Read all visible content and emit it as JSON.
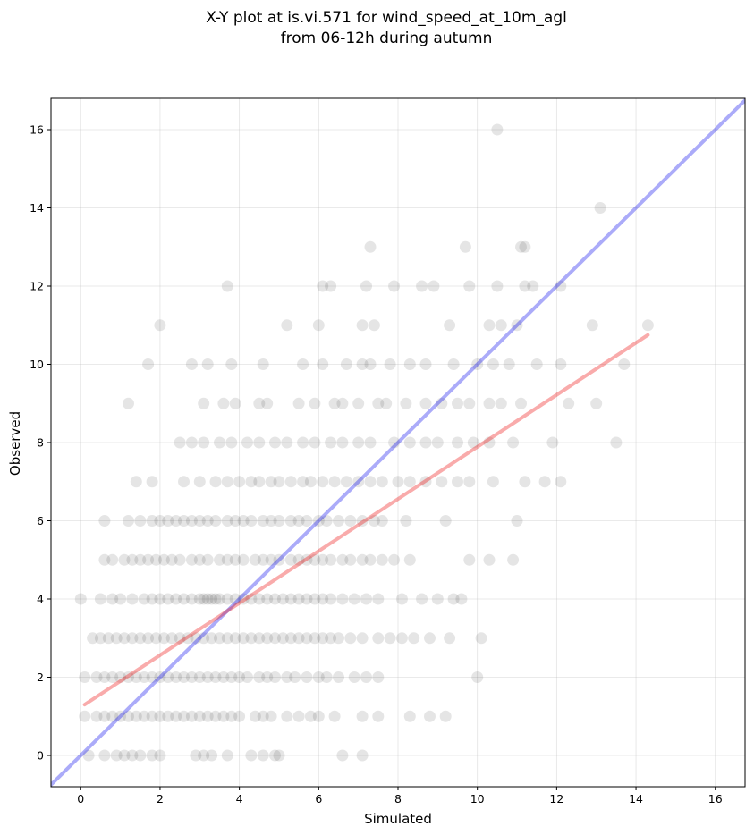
{
  "chart_data": {
    "type": "scatter",
    "title_line1": "X-Y plot at is.vi.571 for wind_speed_at_10m_agl",
    "title_line2": "from 06-12h during autumn",
    "xlabel": "Simulated",
    "ylabel": "Observed",
    "xlim": [
      -0.75,
      16.75
    ],
    "ylim": [
      -0.8,
      16.8
    ],
    "xticks": [
      0,
      2,
      4,
      6,
      8,
      10,
      12,
      14,
      16
    ],
    "yticks": [
      0,
      2,
      4,
      6,
      8,
      10,
      12,
      14,
      16
    ],
    "grid": true,
    "colors": {
      "points": "#000000",
      "identity_line": "#0000ee",
      "fit_line": "#ee0000"
    },
    "reference_lines": [
      {
        "name": "1:1",
        "x": [
          -0.75,
          16.75
        ],
        "y": [
          -0.75,
          16.75
        ]
      },
      {
        "name": "fit",
        "x": [
          0.1,
          14.3
        ],
        "y": [
          1.3,
          10.75
        ]
      }
    ],
    "points": [
      [
        0.0,
        4
      ],
      [
        0.5,
        4
      ],
      [
        0.8,
        4
      ],
      [
        1.0,
        4
      ],
      [
        1.3,
        4
      ],
      [
        1.6,
        4
      ],
      [
        1.8,
        4
      ],
      [
        2.0,
        4
      ],
      [
        2.2,
        4
      ],
      [
        2.4,
        4
      ],
      [
        2.6,
        4
      ],
      [
        2.8,
        4
      ],
      [
        3.0,
        4
      ],
      [
        3.1,
        4
      ],
      [
        3.2,
        4
      ],
      [
        3.3,
        4
      ],
      [
        3.4,
        4
      ],
      [
        3.5,
        4
      ],
      [
        3.7,
        4
      ],
      [
        3.9,
        4
      ],
      [
        4.1,
        4
      ],
      [
        4.3,
        4
      ],
      [
        4.5,
        4
      ],
      [
        4.7,
        4
      ],
      [
        4.9,
        4
      ],
      [
        5.1,
        4
      ],
      [
        5.3,
        4
      ],
      [
        5.5,
        4
      ],
      [
        5.7,
        4
      ],
      [
        5.9,
        4
      ],
      [
        6.1,
        4
      ],
      [
        6.3,
        4
      ],
      [
        6.6,
        4
      ],
      [
        6.9,
        4
      ],
      [
        7.2,
        4
      ],
      [
        7.5,
        4
      ],
      [
        8.1,
        4
      ],
      [
        8.6,
        4
      ],
      [
        9.0,
        4
      ],
      [
        9.4,
        4
      ],
      [
        9.6,
        4
      ],
      [
        0.3,
        3
      ],
      [
        0.5,
        3
      ],
      [
        0.7,
        3
      ],
      [
        0.9,
        3
      ],
      [
        1.1,
        3
      ],
      [
        1.3,
        3
      ],
      [
        1.5,
        3
      ],
      [
        1.7,
        3
      ],
      [
        1.9,
        3
      ],
      [
        2.1,
        3
      ],
      [
        2.3,
        3
      ],
      [
        2.5,
        3
      ],
      [
        2.7,
        3
      ],
      [
        2.9,
        3
      ],
      [
        3.1,
        3
      ],
      [
        3.3,
        3
      ],
      [
        3.5,
        3
      ],
      [
        3.7,
        3
      ],
      [
        3.9,
        3
      ],
      [
        4.1,
        3
      ],
      [
        4.3,
        3
      ],
      [
        4.5,
        3
      ],
      [
        4.7,
        3
      ],
      [
        4.9,
        3
      ],
      [
        5.1,
        3
      ],
      [
        5.3,
        3
      ],
      [
        5.5,
        3
      ],
      [
        5.7,
        3
      ],
      [
        5.9,
        3
      ],
      [
        6.1,
        3
      ],
      [
        6.3,
        3
      ],
      [
        6.5,
        3
      ],
      [
        6.8,
        3
      ],
      [
        7.1,
        3
      ],
      [
        7.5,
        3
      ],
      [
        7.8,
        3
      ],
      [
        8.1,
        3
      ],
      [
        8.4,
        3
      ],
      [
        8.8,
        3
      ],
      [
        9.3,
        3
      ],
      [
        10.1,
        3
      ],
      [
        0.1,
        2
      ],
      [
        0.4,
        2
      ],
      [
        0.6,
        2
      ],
      [
        0.8,
        2
      ],
      [
        1.0,
        2
      ],
      [
        1.2,
        2
      ],
      [
        1.4,
        2
      ],
      [
        1.6,
        2
      ],
      [
        1.8,
        2
      ],
      [
        2.0,
        2
      ],
      [
        2.2,
        2
      ],
      [
        2.4,
        2
      ],
      [
        2.6,
        2
      ],
      [
        2.8,
        2
      ],
      [
        3.0,
        2
      ],
      [
        3.2,
        2
      ],
      [
        3.4,
        2
      ],
      [
        3.6,
        2
      ],
      [
        3.8,
        2
      ],
      [
        4.0,
        2
      ],
      [
        4.2,
        2
      ],
      [
        4.5,
        2
      ],
      [
        4.7,
        2
      ],
      [
        4.9,
        2
      ],
      [
        5.2,
        2
      ],
      [
        5.4,
        2
      ],
      [
        5.7,
        2
      ],
      [
        6.0,
        2
      ],
      [
        6.2,
        2
      ],
      [
        6.5,
        2
      ],
      [
        6.9,
        2
      ],
      [
        7.2,
        2
      ],
      [
        7.5,
        2
      ],
      [
        10.0,
        2
      ],
      [
        0.1,
        1
      ],
      [
        0.4,
        1
      ],
      [
        0.6,
        1
      ],
      [
        0.8,
        1
      ],
      [
        1.0,
        1
      ],
      [
        1.2,
        1
      ],
      [
        1.4,
        1
      ],
      [
        1.6,
        1
      ],
      [
        1.8,
        1
      ],
      [
        2.0,
        1
      ],
      [
        2.2,
        1
      ],
      [
        2.4,
        1
      ],
      [
        2.6,
        1
      ],
      [
        2.8,
        1
      ],
      [
        3.0,
        1
      ],
      [
        3.2,
        1
      ],
      [
        3.4,
        1
      ],
      [
        3.6,
        1
      ],
      [
        3.8,
        1
      ],
      [
        4.0,
        1
      ],
      [
        4.4,
        1
      ],
      [
        4.6,
        1
      ],
      [
        4.8,
        1
      ],
      [
        5.2,
        1
      ],
      [
        5.5,
        1
      ],
      [
        5.8,
        1
      ],
      [
        6.0,
        1
      ],
      [
        6.4,
        1
      ],
      [
        7.1,
        1
      ],
      [
        7.5,
        1
      ],
      [
        8.3,
        1
      ],
      [
        8.8,
        1
      ],
      [
        9.2,
        1
      ],
      [
        0.2,
        0
      ],
      [
        0.6,
        0
      ],
      [
        0.9,
        0
      ],
      [
        1.1,
        0
      ],
      [
        1.3,
        0
      ],
      [
        1.5,
        0
      ],
      [
        1.8,
        0
      ],
      [
        2.0,
        0
      ],
      [
        2.9,
        0
      ],
      [
        3.1,
        0
      ],
      [
        3.3,
        0
      ],
      [
        3.7,
        0
      ],
      [
        4.3,
        0
      ],
      [
        4.6,
        0
      ],
      [
        4.9,
        0
      ],
      [
        5.0,
        0
      ],
      [
        6.6,
        0
      ],
      [
        7.1,
        0
      ],
      [
        0.6,
        5
      ],
      [
        0.8,
        5
      ],
      [
        1.1,
        5
      ],
      [
        1.3,
        5
      ],
      [
        1.5,
        5
      ],
      [
        1.7,
        5
      ],
      [
        1.9,
        5
      ],
      [
        2.1,
        5
      ],
      [
        2.3,
        5
      ],
      [
        2.5,
        5
      ],
      [
        2.8,
        5
      ],
      [
        3.0,
        5
      ],
      [
        3.2,
        5
      ],
      [
        3.5,
        5
      ],
      [
        3.7,
        5
      ],
      [
        3.9,
        5
      ],
      [
        4.1,
        5
      ],
      [
        4.4,
        5
      ],
      [
        4.6,
        5
      ],
      [
        4.8,
        5
      ],
      [
        5.0,
        5
      ],
      [
        5.3,
        5
      ],
      [
        5.5,
        5
      ],
      [
        5.7,
        5
      ],
      [
        5.9,
        5
      ],
      [
        6.1,
        5
      ],
      [
        6.3,
        5
      ],
      [
        6.6,
        5
      ],
      [
        6.8,
        5
      ],
      [
        7.1,
        5
      ],
      [
        7.3,
        5
      ],
      [
        7.6,
        5
      ],
      [
        7.9,
        5
      ],
      [
        8.3,
        5
      ],
      [
        9.8,
        5
      ],
      [
        10.3,
        5
      ],
      [
        10.9,
        5
      ],
      [
        0.6,
        6
      ],
      [
        1.2,
        6
      ],
      [
        1.5,
        6
      ],
      [
        1.8,
        6
      ],
      [
        2.0,
        6
      ],
      [
        2.2,
        6
      ],
      [
        2.4,
        6
      ],
      [
        2.6,
        6
      ],
      [
        2.8,
        6
      ],
      [
        3.0,
        6
      ],
      [
        3.2,
        6
      ],
      [
        3.4,
        6
      ],
      [
        3.7,
        6
      ],
      [
        3.9,
        6
      ],
      [
        4.1,
        6
      ],
      [
        4.3,
        6
      ],
      [
        4.6,
        6
      ],
      [
        4.8,
        6
      ],
      [
        5.0,
        6
      ],
      [
        5.3,
        6
      ],
      [
        5.5,
        6
      ],
      [
        5.7,
        6
      ],
      [
        6.0,
        6
      ],
      [
        6.2,
        6
      ],
      [
        6.5,
        6
      ],
      [
        6.8,
        6
      ],
      [
        7.1,
        6
      ],
      [
        7.4,
        6
      ],
      [
        7.6,
        6
      ],
      [
        8.2,
        6
      ],
      [
        9.2,
        6
      ],
      [
        11.0,
        6
      ],
      [
        1.4,
        7
      ],
      [
        1.8,
        7
      ],
      [
        2.6,
        7
      ],
      [
        3.0,
        7
      ],
      [
        3.4,
        7
      ],
      [
        3.7,
        7
      ],
      [
        4.0,
        7
      ],
      [
        4.3,
        7
      ],
      [
        4.5,
        7
      ],
      [
        4.8,
        7
      ],
      [
        5.0,
        7
      ],
      [
        5.3,
        7
      ],
      [
        5.6,
        7
      ],
      [
        5.8,
        7
      ],
      [
        6.1,
        7
      ],
      [
        6.4,
        7
      ],
      [
        6.7,
        7
      ],
      [
        7.0,
        7
      ],
      [
        7.3,
        7
      ],
      [
        7.6,
        7
      ],
      [
        8.0,
        7
      ],
      [
        8.3,
        7
      ],
      [
        8.7,
        7
      ],
      [
        9.1,
        7
      ],
      [
        9.5,
        7
      ],
      [
        9.8,
        7
      ],
      [
        10.4,
        7
      ],
      [
        11.2,
        7
      ],
      [
        11.7,
        7
      ],
      [
        12.1,
        7
      ],
      [
        2.5,
        8
      ],
      [
        2.8,
        8
      ],
      [
        3.1,
        8
      ],
      [
        3.5,
        8
      ],
      [
        3.8,
        8
      ],
      [
        4.2,
        8
      ],
      [
        4.5,
        8
      ],
      [
        4.9,
        8
      ],
      [
        5.2,
        8
      ],
      [
        5.6,
        8
      ],
      [
        5.9,
        8
      ],
      [
        6.3,
        8
      ],
      [
        6.6,
        8
      ],
      [
        7.0,
        8
      ],
      [
        7.3,
        8
      ],
      [
        7.9,
        8
      ],
      [
        8.3,
        8
      ],
      [
        8.7,
        8
      ],
      [
        9.0,
        8
      ],
      [
        9.5,
        8
      ],
      [
        9.9,
        8
      ],
      [
        10.3,
        8
      ],
      [
        10.9,
        8
      ],
      [
        11.9,
        8
      ],
      [
        13.5,
        8
      ],
      [
        1.2,
        9
      ],
      [
        3.1,
        9
      ],
      [
        3.6,
        9
      ],
      [
        3.9,
        9
      ],
      [
        4.5,
        9
      ],
      [
        4.7,
        9
      ],
      [
        5.5,
        9
      ],
      [
        5.9,
        9
      ],
      [
        6.4,
        9
      ],
      [
        6.6,
        9
      ],
      [
        7.0,
        9
      ],
      [
        7.5,
        9
      ],
      [
        7.7,
        9
      ],
      [
        8.2,
        9
      ],
      [
        8.7,
        9
      ],
      [
        9.1,
        9
      ],
      [
        9.5,
        9
      ],
      [
        9.8,
        9
      ],
      [
        10.3,
        9
      ],
      [
        10.6,
        9
      ],
      [
        11.1,
        9
      ],
      [
        12.3,
        9
      ],
      [
        13.0,
        9
      ],
      [
        1.7,
        10
      ],
      [
        2.8,
        10
      ],
      [
        3.2,
        10
      ],
      [
        3.8,
        10
      ],
      [
        4.6,
        10
      ],
      [
        5.6,
        10
      ],
      [
        6.1,
        10
      ],
      [
        6.7,
        10
      ],
      [
        7.1,
        10
      ],
      [
        7.3,
        10
      ],
      [
        7.8,
        10
      ],
      [
        8.3,
        10
      ],
      [
        8.7,
        10
      ],
      [
        9.4,
        10
      ],
      [
        10.0,
        10
      ],
      [
        10.4,
        10
      ],
      [
        10.8,
        10
      ],
      [
        11.5,
        10
      ],
      [
        12.1,
        10
      ],
      [
        13.7,
        10
      ],
      [
        2.0,
        11
      ],
      [
        5.2,
        11
      ],
      [
        6.0,
        11
      ],
      [
        7.1,
        11
      ],
      [
        7.4,
        11
      ],
      [
        9.3,
        11
      ],
      [
        10.3,
        11
      ],
      [
        10.6,
        11
      ],
      [
        11.0,
        11
      ],
      [
        12.9,
        11
      ],
      [
        14.3,
        11
      ],
      [
        3.7,
        12
      ],
      [
        6.1,
        12
      ],
      [
        6.3,
        12
      ],
      [
        7.2,
        12
      ],
      [
        7.9,
        12
      ],
      [
        8.6,
        12
      ],
      [
        8.9,
        12
      ],
      [
        9.8,
        12
      ],
      [
        10.5,
        12
      ],
      [
        11.2,
        12
      ],
      [
        11.4,
        12
      ],
      [
        12.1,
        12
      ],
      [
        7.3,
        13
      ],
      [
        9.7,
        13
      ],
      [
        11.1,
        13
      ],
      [
        11.2,
        13
      ],
      [
        13.1,
        14
      ],
      [
        10.5,
        16
      ]
    ]
  }
}
